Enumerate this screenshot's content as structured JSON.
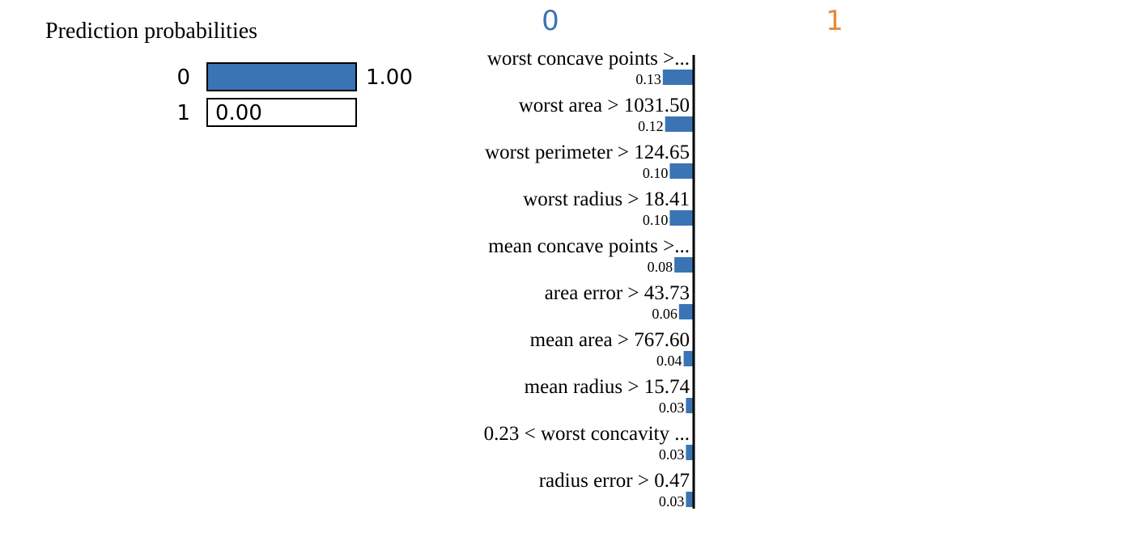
{
  "prediction_probabilities": {
    "title": "Prediction probabilities",
    "rows": [
      {
        "class_label": "0",
        "value": 1.0,
        "value_label": "1.00",
        "color": "#3a74b4"
      },
      {
        "class_label": "1",
        "value": 0.0,
        "value_label": "0.00",
        "color": "#f08a2c"
      }
    ]
  },
  "class_headers": {
    "negative": {
      "label": "0",
      "color": "#3a74b4"
    },
    "positive": {
      "label": "1",
      "color": "#e8883a"
    }
  },
  "chart_data": {
    "type": "bar",
    "orientation": "horizontal",
    "categories": [
      "worst concave points >...",
      "worst area > 1031.50",
      "worst perimeter > 124.65",
      "worst radius > 18.41",
      "mean concave points >...",
      "area error > 43.73",
      "mean area > 767.60",
      "mean radius > 15.74",
      "0.23 < worst concavity ...",
      "radius error > 0.47"
    ],
    "series": [
      {
        "values": [
          0.13,
          0.12,
          0.1,
          0.1,
          0.08,
          0.06,
          0.04,
          0.03,
          0.03,
          0.03
        ],
        "value_labels": [
          "0.13",
          "0.12",
          "0.10",
          "0.10",
          "0.08",
          "0.06",
          "0.04",
          "0.03",
          "0.03",
          "0.03"
        ],
        "class": "0",
        "color": "#3a74b4"
      }
    ],
    "axis_color": "#000000"
  }
}
